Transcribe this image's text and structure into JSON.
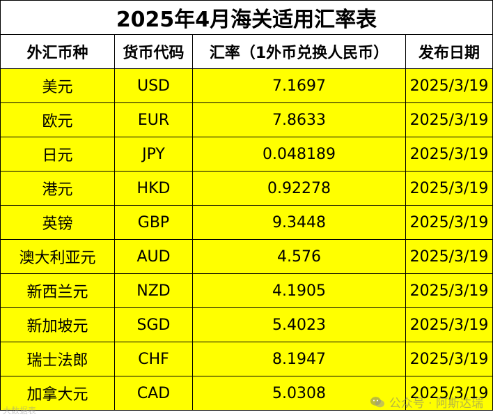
{
  "title": "2025年4月海关适用汇率表",
  "columns": [
    "外汇币种",
    "货币代码",
    "汇率（1外币兑换人民币）",
    "发布日期"
  ],
  "rows": [
    {
      "currency": "美元",
      "code": "USD",
      "rate": "7.1697",
      "date": "2025/3/19"
    },
    {
      "currency": "欧元",
      "code": "EUR",
      "rate": "7.8633",
      "date": "2025/3/19"
    },
    {
      "currency": "日元",
      "code": "JPY",
      "rate": "0.048189",
      "date": "2025/3/19"
    },
    {
      "currency": "港元",
      "code": "HKD",
      "rate": "0.92278",
      "date": "2025/3/19"
    },
    {
      "currency": "英镑",
      "code": "GBP",
      "rate": "9.3448",
      "date": "2025/3/19"
    },
    {
      "currency": "澳大利亚元",
      "code": "AUD",
      "rate": "4.576",
      "date": "2025/3/19"
    },
    {
      "currency": "新西兰元",
      "code": "NZD",
      "rate": "4.1905",
      "date": "2025/3/19"
    },
    {
      "currency": "新加坡元",
      "code": "SGD",
      "rate": "5.4023",
      "date": "2025/3/19"
    },
    {
      "currency": "瑞士法郎",
      "code": "CHF",
      "rate": "8.1947",
      "date": "2025/3/19"
    },
    {
      "currency": "加拿大元",
      "code": "CAD",
      "rate": "5.0308",
      "date": "2025/3/19"
    }
  ],
  "watermark": {
    "label": "公众号 · 阿斯达瑞",
    "left_label": "大数据表",
    "icon": "wechat-icon"
  },
  "colors": {
    "row_background": "#ffff00",
    "header_background": "#ffffff",
    "border": "#000000"
  }
}
